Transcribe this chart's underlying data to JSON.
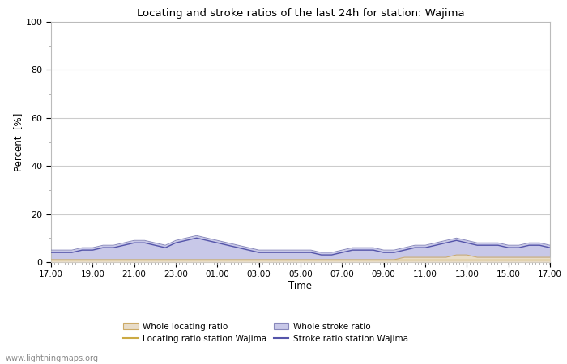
{
  "title": "Locating and stroke ratios of the last 24h for station: Wajima",
  "xlabel": "Time",
  "ylabel": "Percent  [%]",
  "xlim": [
    0,
    48
  ],
  "ylim": [
    0,
    100
  ],
  "yticks": [
    0,
    20,
    40,
    60,
    80,
    100
  ],
  "xtick_labels": [
    "17:00",
    "19:00",
    "21:00",
    "23:00",
    "01:00",
    "03:00",
    "05:00",
    "07:00",
    "09:00",
    "11:00",
    "13:00",
    "15:00",
    "17:00"
  ],
  "xtick_positions": [
    0,
    4,
    8,
    12,
    16,
    20,
    24,
    28,
    32,
    36,
    40,
    44,
    48
  ],
  "bg_color": "#ffffff",
  "plot_bg_color": "#ffffff",
  "grid_color": "#cccccc",
  "whole_stroke_color": "#c8c8e8",
  "whole_stroke_line_color": "#8888bb",
  "whole_locating_color": "#e8dcc8",
  "whole_locating_line_color": "#ccaa66",
  "station_locating_color": "#ccaa44",
  "station_stroke_color": "#5555aa",
  "watermark": "www.lightningmaps.org",
  "whole_stroke_ratio": [
    5,
    5,
    5,
    6,
    6,
    7,
    7,
    8,
    9,
    9,
    8,
    7,
    9,
    10,
    11,
    10,
    9,
    8,
    7,
    6,
    5,
    5,
    5,
    5,
    5,
    5,
    4,
    4,
    5,
    6,
    6,
    6,
    5,
    5,
    6,
    7,
    7,
    8,
    9,
    10,
    9,
    8,
    8,
    8,
    7,
    7,
    8,
    8,
    7
  ],
  "whole_locating_ratio": [
    1,
    1,
    1,
    1,
    1,
    1,
    1,
    1,
    1,
    1,
    1,
    1,
    1,
    1,
    1,
    1,
    1,
    1,
    1,
    1,
    1,
    1,
    1,
    1,
    1,
    1,
    1,
    1,
    1,
    1,
    1,
    1,
    1,
    1,
    2,
    2,
    2,
    2,
    2,
    3,
    3,
    2,
    2,
    2,
    2,
    2,
    2,
    2,
    2
  ],
  "station_locating_ratio": [
    1,
    1,
    1,
    1,
    1,
    1,
    1,
    1,
    1,
    1,
    1,
    1,
    1,
    1,
    1,
    1,
    1,
    1,
    1,
    1,
    1,
    1,
    1,
    1,
    1,
    1,
    1,
    1,
    1,
    1,
    1,
    1,
    1,
    1,
    1,
    1,
    1,
    1,
    1,
    1,
    1,
    1,
    1,
    1,
    1,
    1,
    1,
    1,
    1
  ],
  "station_stroke_ratio": [
    4,
    4,
    4,
    5,
    5,
    6,
    6,
    7,
    8,
    8,
    7,
    6,
    8,
    9,
    10,
    9,
    8,
    7,
    6,
    5,
    4,
    4,
    4,
    4,
    4,
    4,
    3,
    3,
    4,
    5,
    5,
    5,
    4,
    4,
    5,
    6,
    6,
    7,
    8,
    9,
    8,
    7,
    7,
    7,
    6,
    6,
    7,
    7,
    6
  ]
}
